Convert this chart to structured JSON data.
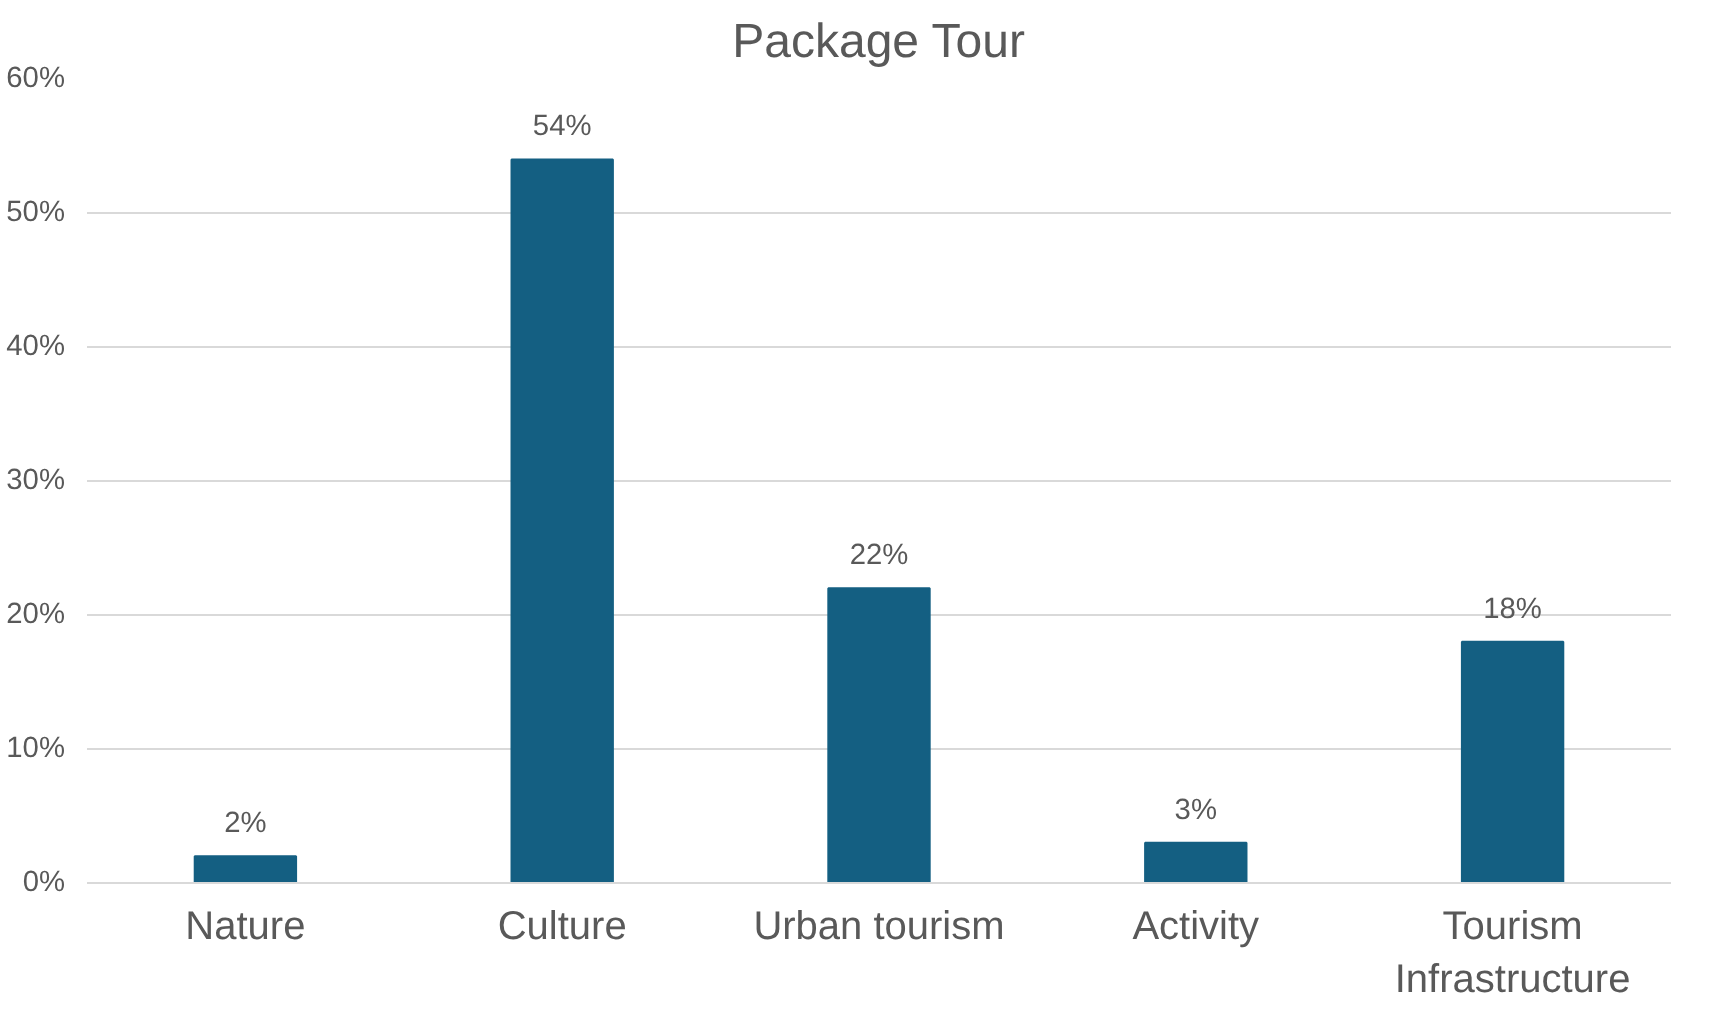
{
  "chart_data": {
    "type": "bar",
    "title": "Package Tour",
    "categories": [
      "Nature",
      "Culture",
      "Urban tourism",
      "Activity",
      "Tourism Infrastructure"
    ],
    "values": [
      2,
      54,
      22,
      3,
      18
    ],
    "value_labels": [
      "2%",
      "54%",
      "22%",
      "3%",
      "18%"
    ],
    "color": "#145f82",
    "ylim": [
      0,
      60
    ],
    "yticks": [
      {
        "value": 0,
        "label": "0%"
      },
      {
        "value": 10,
        "label": "10%"
      },
      {
        "value": 20,
        "label": "20%"
      },
      {
        "value": 30,
        "label": "30%"
      },
      {
        "value": 40,
        "label": "40%"
      },
      {
        "value": 50,
        "label": "50%"
      },
      {
        "value": 60,
        "label": "60%"
      }
    ],
    "grid": "y"
  }
}
